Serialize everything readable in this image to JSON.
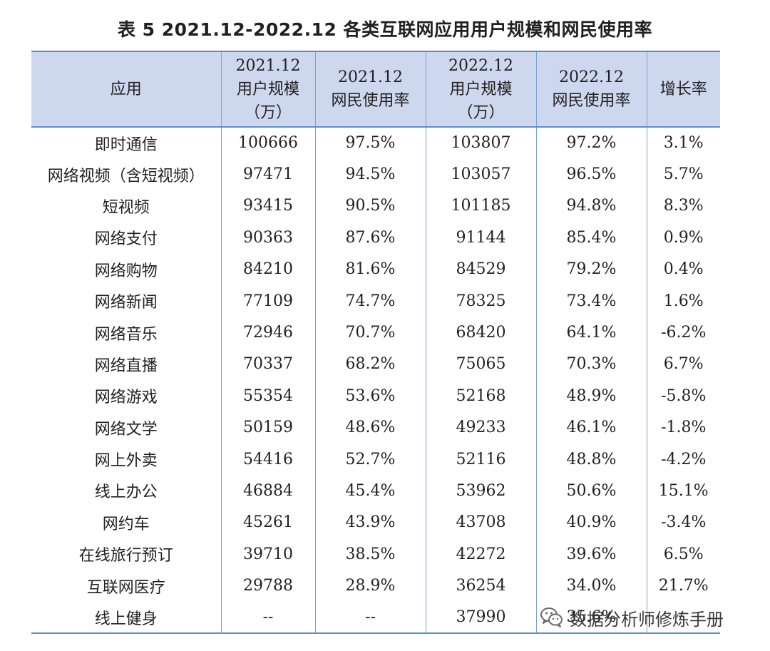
{
  "title": "表 5  2021.12-2022.12 各类互联网应用用户规模和网民使用率",
  "table": {
    "headers": [
      [
        "应用"
      ],
      [
        "2021.12",
        "用户规模",
        "（万）"
      ],
      [
        "2021.12",
        "网民使用率"
      ],
      [
        "2022.12",
        "用户规模",
        "（万）"
      ],
      [
        "2022.12",
        "网民使用率"
      ],
      [
        "增长率"
      ]
    ],
    "rows": [
      [
        "即时通信",
        "100666",
        "97.5%",
        "103807",
        "97.2%",
        "3.1%"
      ],
      [
        "网络视频（含短视频）",
        "97471",
        "94.5%",
        "103057",
        "96.5%",
        "5.7%"
      ],
      [
        "短视频",
        "93415",
        "90.5%",
        "101185",
        "94.8%",
        "8.3%"
      ],
      [
        "网络支付",
        "90363",
        "87.6%",
        "91144",
        "85.4%",
        "0.9%"
      ],
      [
        "网络购物",
        "84210",
        "81.6%",
        "84529",
        "79.2%",
        "0.4%"
      ],
      [
        "网络新闻",
        "77109",
        "74.7%",
        "78325",
        "73.4%",
        "1.6%"
      ],
      [
        "网络音乐",
        "72946",
        "70.7%",
        "68420",
        "64.1%",
        "-6.2%"
      ],
      [
        "网络直播",
        "70337",
        "68.2%",
        "75065",
        "70.3%",
        "6.7%"
      ],
      [
        "网络游戏",
        "55354",
        "53.6%",
        "52168",
        "48.9%",
        "-5.8%"
      ],
      [
        "网络文学",
        "50159",
        "48.6%",
        "49233",
        "46.1%",
        "-1.8%"
      ],
      [
        "网上外卖",
        "54416",
        "52.7%",
        "52116",
        "48.8%",
        "-4.2%"
      ],
      [
        "线上办公",
        "46884",
        "45.4%",
        "53962",
        "50.6%",
        "15.1%"
      ],
      [
        "网约车",
        "45261",
        "43.9%",
        "43708",
        "40.9%",
        "-3.4%"
      ],
      [
        "在线旅行预订",
        "39710",
        "38.5%",
        "42272",
        "39.6%",
        "6.5%"
      ],
      [
        "互联网医疗",
        "29788",
        "28.9%",
        "36254",
        "34.0%",
        "21.7%"
      ],
      [
        "线上健身",
        "--",
        "--",
        "37990",
        "35.6%",
        ""
      ]
    ]
  },
  "watermark": {
    "text": "数据分析师修炼手册",
    "icon": "wechat-icon"
  }
}
